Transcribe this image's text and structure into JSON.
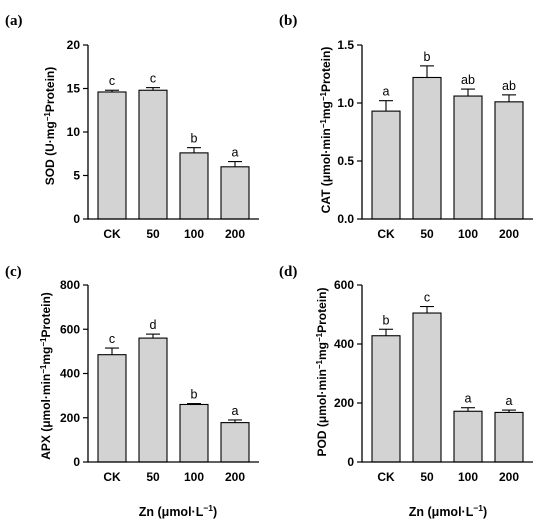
{
  "chart_data": [
    {
      "type": "bar",
      "panel": "(a)",
      "ylabel_main": "SOD (U·mg",
      "ylabel_sup": "−1",
      "ylabel_rest": "Protein)",
      "categories": [
        "CK",
        "50",
        "100",
        "200"
      ],
      "values": [
        14.6,
        14.8,
        7.6,
        6.0
      ],
      "errors": [
        0.2,
        0.3,
        0.6,
        0.6
      ],
      "letters": [
        "c",
        "c",
        "b",
        "a"
      ],
      "ylim": [
        0,
        20
      ],
      "yticks": [
        0,
        5,
        10,
        15,
        20
      ],
      "ytick_labels": [
        "0",
        "5",
        "10",
        "15",
        "20"
      ]
    },
    {
      "type": "bar",
      "panel": "(b)",
      "ylabel_main": "CAT (μmol·min",
      "ylabel_sup": "−1",
      "ylabel_mid": "mg",
      "ylabel_sup2": "−1",
      "ylabel_rest": "Protein)",
      "categories": [
        "CK",
        "50",
        "100",
        "200"
      ],
      "values": [
        0.93,
        1.22,
        1.06,
        1.01
      ],
      "errors": [
        0.09,
        0.1,
        0.06,
        0.06
      ],
      "letters": [
        "a",
        "b",
        "ab",
        "ab"
      ],
      "ylim": [
        0,
        1.5
      ],
      "yticks": [
        0,
        0.5,
        1.0,
        1.5
      ],
      "ytick_labels": [
        "0.0",
        "0.5",
        "1.0",
        "1.5"
      ]
    },
    {
      "type": "bar",
      "panel": "(c)",
      "ylabel_main": "APX (μmol·min",
      "ylabel_sup": "−1",
      "ylabel_mid": "mg",
      "ylabel_sup2": "−1",
      "ylabel_rest": "Protein)",
      "xlabel_main": "Zn (μmol·L",
      "xlabel_sup": "−1",
      "xlabel_rest": ")",
      "categories": [
        "CK",
        "50",
        "100",
        "200"
      ],
      "values": [
        485,
        560,
        260,
        178
      ],
      "errors": [
        30,
        18,
        4,
        12
      ],
      "letters": [
        "c",
        "d",
        "b",
        "a"
      ],
      "ylim": [
        0,
        800
      ],
      "yticks": [
        0,
        200,
        400,
        600,
        800
      ],
      "ytick_labels": [
        "0",
        "200",
        "400",
        "600",
        "800"
      ]
    },
    {
      "type": "bar",
      "panel": "(d)",
      "ylabel_main": "POD (μmol·min",
      "ylabel_sup": "−1",
      "ylabel_mid": "mg",
      "ylabel_sup2": "−1",
      "ylabel_rest": "Protein)",
      "xlabel_main": "Zn (μmol·L",
      "xlabel_sup": "−1",
      "xlabel_rest": ")",
      "categories": [
        "CK",
        "50",
        "100",
        "200"
      ],
      "values": [
        428,
        505,
        172,
        168
      ],
      "errors": [
        22,
        22,
        12,
        8
      ],
      "letters": [
        "b",
        "c",
        "a",
        "a"
      ],
      "ylim": [
        0,
        600
      ],
      "yticks": [
        0,
        200,
        400,
        600
      ],
      "ytick_labels": [
        "0",
        "200",
        "400",
        "600"
      ]
    }
  ]
}
